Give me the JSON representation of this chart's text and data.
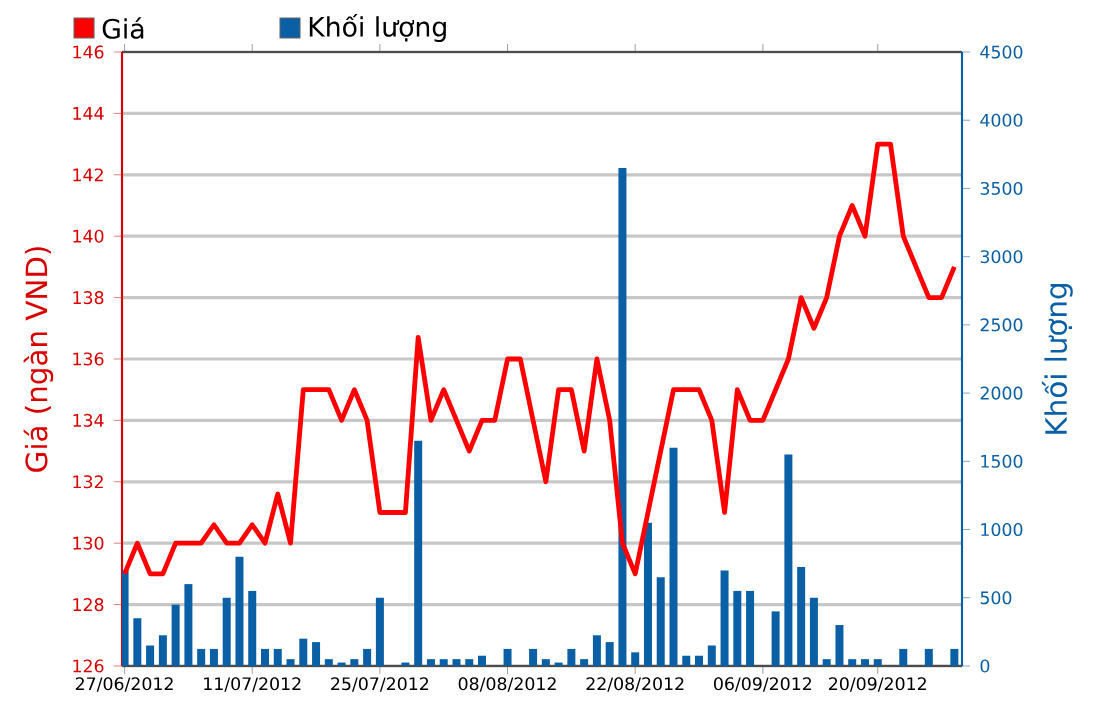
{
  "chart_data": {
    "type": "bar",
    "categories": [
      "27/06/2012",
      null,
      null,
      null,
      null,
      null,
      null,
      null,
      null,
      null,
      "11/07/2012",
      null,
      null,
      null,
      null,
      null,
      null,
      null,
      null,
      null,
      "25/07/2012",
      null,
      null,
      null,
      null,
      null,
      null,
      null,
      null,
      null,
      "08/08/2012",
      null,
      null,
      null,
      null,
      null,
      null,
      null,
      null,
      null,
      "22/08/2012",
      null,
      null,
      null,
      null,
      null,
      null,
      null,
      null,
      null,
      "06/09/2012",
      null,
      null,
      null,
      null,
      null,
      null,
      null,
      null,
      "20/09/2012",
      null,
      null,
      null,
      null,
      null,
      null
    ],
    "series": [
      {
        "name": "Giá",
        "type": "line",
        "axis": "y",
        "color": "#ff0000",
        "values": [
          129,
          130,
          129,
          129,
          130,
          130,
          130,
          130.6,
          130,
          130,
          130.6,
          130,
          131.6,
          130,
          135,
          135,
          135,
          134,
          135,
          134,
          131,
          131,
          131,
          136.7,
          134,
          135,
          134,
          133,
          134,
          134,
          136,
          136,
          134,
          132,
          135,
          135,
          133,
          136,
          134,
          130,
          129,
          131,
          133,
          135,
          135,
          135,
          134,
          131,
          135,
          134,
          134,
          135,
          136,
          138,
          137,
          138,
          140,
          141,
          140,
          143,
          143,
          140,
          139,
          138,
          138,
          139
        ]
      },
      {
        "name": "Khối lượng",
        "axis": "y2",
        "color": "#0a5fa5",
        "values": [
          700,
          350,
          150,
          225,
          450,
          600,
          125,
          125,
          500,
          800,
          550,
          125,
          125,
          50,
          200,
          175,
          50,
          25,
          50,
          125,
          500,
          null,
          25,
          1650,
          50,
          50,
          50,
          50,
          75,
          null,
          125,
          null,
          125,
          50,
          25,
          125,
          50,
          225,
          175,
          3650,
          100,
          1050,
          650,
          1600,
          75,
          75,
          150,
          700,
          550,
          550,
          null,
          400,
          1550,
          725,
          500,
          50,
          300,
          50,
          50,
          50,
          null,
          125,
          null,
          125,
          null,
          125
        ]
      }
    ],
    "ylabel": "Giá (ngàn VND)",
    "y2label": "Khối lượng",
    "ylim": [
      126,
      146
    ],
    "yticks": [
      126,
      128,
      130,
      132,
      134,
      136,
      138,
      140,
      142,
      144,
      146
    ],
    "y2lim": [
      0,
      4500
    ],
    "y2ticks": [
      0,
      500,
      1000,
      1500,
      2000,
      2500,
      3000,
      3500,
      4000,
      4500
    ],
    "grid": "y",
    "legend": "top left"
  }
}
